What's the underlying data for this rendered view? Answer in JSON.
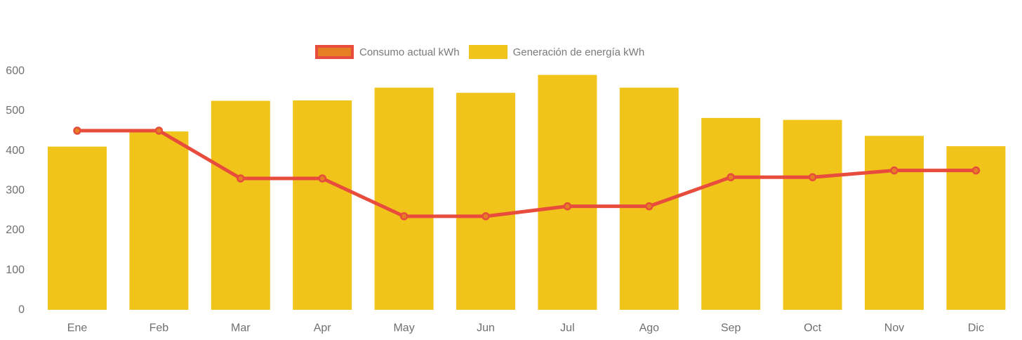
{
  "page": {
    "background_color": "#ffffff",
    "axis_text_color": "#6f6f6f",
    "legend_text_color": "#7a7a7a"
  },
  "chart_data": {
    "type": "bar",
    "subtype": "bar-with-line-overlay",
    "title": "",
    "xlabel": "",
    "ylabel": "",
    "categories": [
      "Ene",
      "Feb",
      "Mar",
      "Apr",
      "May",
      "Jun",
      "Jul",
      "Ago",
      "Sep",
      "Oct",
      "Nov",
      "Dic"
    ],
    "series": [
      {
        "name": "Consumo actual kWh",
        "kind": "line",
        "color": "#E74C3C",
        "point_fill": "#E67E22",
        "values": [
          450,
          450,
          330,
          330,
          235,
          235,
          260,
          260,
          333,
          333,
          350,
          350
        ]
      },
      {
        "name": "Generación de energía kWh",
        "kind": "bar",
        "color": "#F0C41A",
        "values": [
          410,
          448,
          525,
          526,
          558,
          545,
          590,
          558,
          482,
          477,
          437,
          411
        ]
      }
    ],
    "y_ticks": [
      0,
      100,
      200,
      300,
      400,
      500,
      600
    ],
    "y_tick_labels": [
      "0",
      "100",
      "200",
      "300",
      "400",
      "500",
      "600"
    ],
    "ylim": [
      0,
      600
    ],
    "grid": false,
    "axis_lines": false,
    "legend_position": "top-center"
  }
}
